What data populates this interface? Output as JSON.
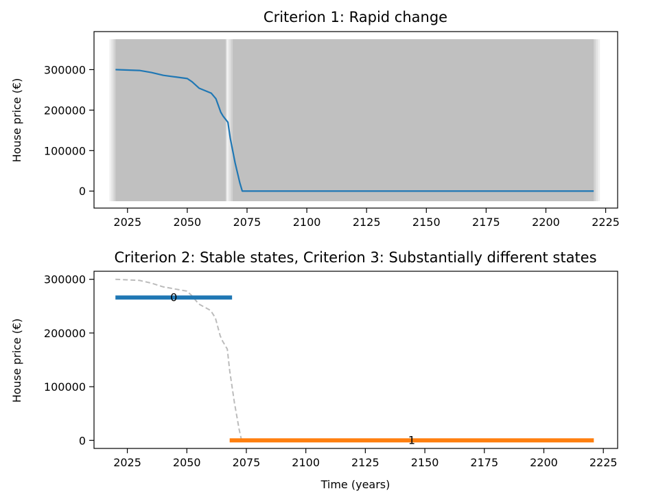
{
  "chart_data": [
    {
      "type": "line",
      "title": "Criterion 1: Rapid change",
      "xlabel": "",
      "ylabel": "House price (€)",
      "xlim": [
        2011,
        2230
      ],
      "ylim": [
        -42000,
        394000
      ],
      "xticks": [
        "2025",
        "2050",
        "2075",
        "2100",
        "2125",
        "2150",
        "2175",
        "2200",
        "2225"
      ],
      "yticks": [
        "0",
        "100000",
        "200000",
        "300000"
      ],
      "series": [
        {
          "color": "#1f77b4",
          "x": [
            2020,
            2025,
            2030,
            2035,
            2040,
            2045,
            2050,
            2052,
            2055,
            2060,
            2062,
            2064,
            2065,
            2067,
            2068,
            2070,
            2072,
            2073,
            2080,
            2100,
            2150,
            2200,
            2220
          ],
          "y": [
            300000,
            299000,
            298000,
            293000,
            286000,
            282000,
            278000,
            270000,
            254000,
            242000,
            228000,
            195000,
            185000,
            170000,
            130000,
            70000,
            20000,
            0,
            0,
            0,
            0,
            0,
            0
          ]
        }
      ],
      "shaded_band": {
        "color": "#c0c0c0",
        "ranges": [
          [
            2020,
            2066
          ],
          [
            2069,
            2220
          ]
        ],
        "ymin": -25000,
        "ymax": 375000
      }
    },
    {
      "type": "line",
      "title": "Criterion 2: Stable states, Criterion 3: Substantially different states",
      "xlabel": "Time (years)",
      "ylabel": "House price (€)",
      "xlim": [
        2011,
        2231
      ],
      "ylim": [
        -15000,
        315000
      ],
      "xticks": [
        "2025",
        "2050",
        "2075",
        "2100",
        "2125",
        "2150",
        "2175",
        "2200",
        "2225"
      ],
      "yticks": [
        "0",
        "100000",
        "200000",
        "300000"
      ],
      "background_series": {
        "color": "#bbbbbb",
        "x": [
          2020,
          2025,
          2030,
          2035,
          2040,
          2045,
          2050,
          2052,
          2055,
          2060,
          2062,
          2064,
          2065,
          2067,
          2068,
          2070,
          2072,
          2073,
          2080,
          2100,
          2150,
          2200,
          2220
        ],
        "y": [
          300000,
          299000,
          298000,
          293000,
          286000,
          282000,
          278000,
          270000,
          254000,
          242000,
          228000,
          195000,
          185000,
          170000,
          130000,
          70000,
          20000,
          0,
          0,
          0,
          0,
          0,
          0
        ]
      },
      "segments": [
        {
          "label": "0",
          "x_start": 2020,
          "x_end": 2069,
          "y": 266000,
          "color": "#1f77b4"
        },
        {
          "label": "1",
          "x_start": 2068,
          "x_end": 2221,
          "y": 0,
          "color": "#ff7f0e"
        }
      ]
    }
  ]
}
